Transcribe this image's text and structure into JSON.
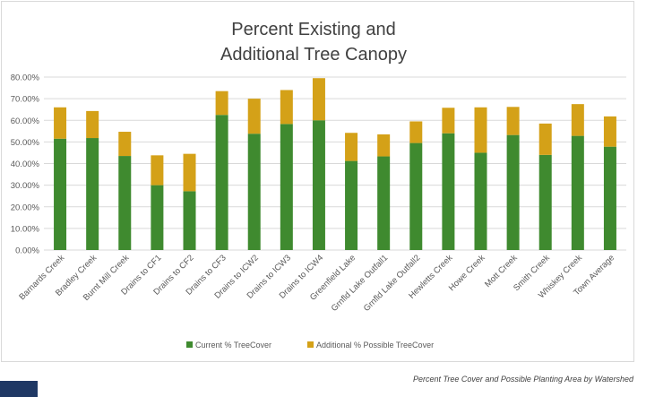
{
  "caption": "Percent Tree Cover and Possible Planting Area by Watershed",
  "colors": {
    "current": "#3f8a2f",
    "additional": "#d4a118",
    "grid": "#d9d9d9",
    "brand_block": "#1f3864"
  },
  "chart_data": {
    "type": "bar",
    "stacked": true,
    "title": [
      "Percent Existing and",
      "Additional Tree Canopy"
    ],
    "xlabel": "",
    "ylabel": "",
    "ylim": [
      0,
      80
    ],
    "yticks": [
      "0.00%",
      "10.00%",
      "20.00%",
      "30.00%",
      "40.00%",
      "50.00%",
      "60.00%",
      "70.00%",
      "80.00%"
    ],
    "grid": true,
    "legend_position": "bottom",
    "categories": [
      "Barnards Creek",
      "Bradley Creek",
      "Burnt Mill Creek",
      "Drains to CF1",
      "Drains to CF2",
      "Drains to CF3",
      "Drains to ICW2",
      "Drains to ICW3",
      "Drains to ICW4",
      "Greenfield Lake",
      "Grnfld Lake Outfall1",
      "Grnfld Lake Outfall2",
      "Hewletts Creek",
      "Howe Creek",
      "Mott Creek",
      "Smith Creek",
      "Whiskey Creek",
      "Town Average"
    ],
    "series": [
      {
        "name": "Current % TreeCover",
        "values": [
          51.5,
          51.8,
          43.5,
          30.0,
          27.2,
          62.5,
          53.8,
          58.3,
          60.0,
          41.2,
          43.3,
          49.5,
          54.0,
          45.0,
          53.2,
          44.0,
          52.8,
          47.8
        ]
      },
      {
        "name": "Additional % Possible TreeCover",
        "values": [
          14.5,
          12.5,
          11.2,
          13.8,
          17.3,
          11.0,
          16.2,
          15.7,
          19.5,
          13.0,
          10.2,
          10.0,
          11.8,
          21.0,
          13.0,
          14.5,
          14.7,
          14.0
        ]
      }
    ]
  }
}
